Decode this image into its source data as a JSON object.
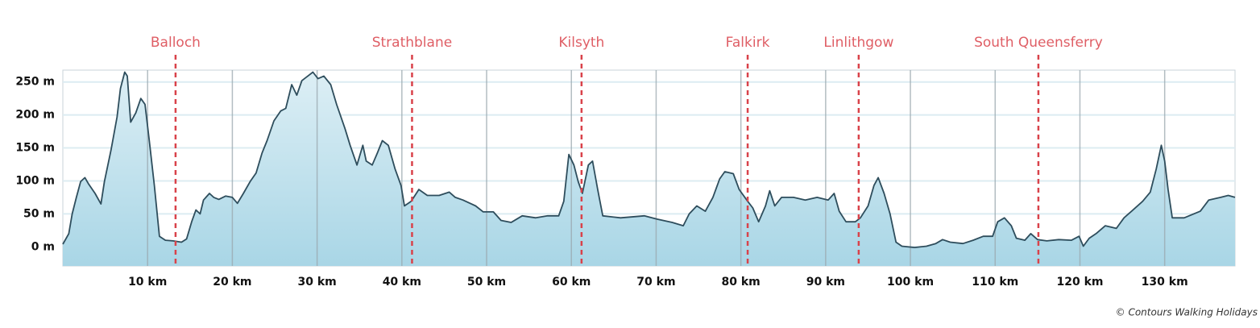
{
  "chart_data": {
    "type": "area",
    "x": [
      0,
      0.7,
      1.1,
      1.6,
      2.1,
      2.6,
      3.0,
      3.8,
      4.5,
      4.9,
      5.7,
      6.4,
      6.8,
      7.3,
      7.6,
      8.0,
      8.6,
      9.2,
      9.7,
      10.2,
      10.8,
      11.4,
      12.1,
      13.0,
      14.0,
      14.6,
      15.2,
      15.7,
      16.2,
      16.6,
      17.3,
      17.8,
      18.4,
      19.2,
      20.0,
      20.6,
      21.3,
      22.1,
      22.8,
      23.5,
      24.1,
      24.9,
      25.7,
      26.3,
      27.0,
      27.6,
      28.2,
      28.9,
      29.5,
      30.1,
      30.8,
      31.6,
      32.3,
      33.3,
      33.9,
      34.7,
      35.4,
      35.8,
      36.5,
      37.1,
      37.7,
      38.4,
      39.2,
      39.9,
      40.3,
      41.1,
      42.0,
      43.0,
      44.4,
      45.6,
      46.3,
      47.2,
      48.7,
      49.6,
      50.8,
      51.7,
      52.9,
      54.2,
      55.8,
      57.2,
      58.5,
      59.1,
      59.7,
      60.3,
      60.8,
      61.3,
      62.0,
      62.5,
      63.1,
      63.7,
      65.8,
      68.6,
      70.1,
      71.9,
      73.2,
      73.9,
      74.8,
      75.8,
      76.7,
      77.5,
      78.1,
      79.1,
      79.8,
      80.8,
      81.4,
      82.1,
      82.9,
      83.4,
      84.0,
      84.8,
      86.2,
      87.6,
      89.0,
      90.3,
      91.0,
      91.6,
      92.4,
      93.5,
      94.1,
      95.0,
      95.7,
      96.2,
      96.9,
      97.6,
      98.3,
      99.0,
      100.5,
      101.9,
      103.0,
      103.8,
      104.7,
      106.2,
      107.4,
      108.6,
      109.7,
      110.3,
      111.1,
      111.9,
      112.5,
      113.5,
      114.2,
      115.0,
      116.1,
      117.5,
      119.0,
      119.9,
      120.4,
      121.1,
      121.9,
      123.0,
      124.3,
      125.2,
      126.1,
      127.4,
      128.3,
      129.0,
      129.6,
      130.0,
      130.4,
      130.9,
      132.3,
      134.2,
      135.2,
      136.6,
      137.5,
      138.3
    ],
    "values": [
      4,
      20,
      50,
      75,
      99,
      105,
      96,
      81,
      65,
      99,
      148,
      197,
      240,
      265,
      259,
      189,
      203,
      225,
      216,
      161,
      93,
      16,
      10,
      9,
      7,
      12,
      38,
      56,
      50,
      71,
      81,
      75,
      72,
      77,
      75,
      66,
      81,
      99,
      112,
      142,
      161,
      191,
      206,
      210,
      246,
      230,
      252,
      259,
      265,
      255,
      259,
      246,
      216,
      179,
      154,
      124,
      154,
      130,
      124,
      142,
      161,
      154,
      118,
      93,
      62,
      69,
      87,
      78,
      78,
      83,
      75,
      71,
      62,
      53,
      53,
      40,
      37,
      47,
      44,
      47,
      47,
      69,
      140,
      124,
      99,
      81,
      124,
      130,
      87,
      47,
      44,
      47,
      42,
      37,
      32,
      50,
      62,
      54,
      75,
      103,
      114,
      111,
      87,
      69,
      59,
      38,
      62,
      85,
      62,
      75,
      75,
      71,
      75,
      71,
      81,
      54,
      38,
      38,
      44,
      62,
      93,
      105,
      81,
      50,
      7,
      1,
      -1,
      1,
      5,
      11,
      7,
      5,
      10,
      16,
      16,
      38,
      44,
      32,
      13,
      10,
      20,
      11,
      9,
      11,
      10,
      16,
      1,
      13,
      20,
      32,
      28,
      44,
      54,
      69,
      83,
      118,
      154,
      130,
      87,
      44,
      44,
      54,
      71,
      75,
      78,
      75
    ],
    "xlim": [
      0,
      138.3
    ],
    "ylim": [
      -29,
      268
    ],
    "xticks": [
      {
        "value": 10,
        "label": "10 km"
      },
      {
        "value": 20,
        "label": "20 km"
      },
      {
        "value": 30,
        "label": "30 km"
      },
      {
        "value": 40,
        "label": "40 km"
      },
      {
        "value": 50,
        "label": "50 km"
      },
      {
        "value": 60,
        "label": "60 km"
      },
      {
        "value": 70,
        "label": "70 km"
      },
      {
        "value": 80,
        "label": "80 km"
      },
      {
        "value": 90,
        "label": "90 km"
      },
      {
        "value": 100,
        "label": "100 km"
      },
      {
        "value": 110,
        "label": "110 km"
      },
      {
        "value": 120,
        "label": "120 km"
      },
      {
        "value": 130,
        "label": "130 km"
      }
    ],
    "yticks": [
      {
        "value": 0,
        "label": "0 m"
      },
      {
        "value": 50,
        "label": "50 m"
      },
      {
        "value": 100,
        "label": "100 m"
      },
      {
        "value": 150,
        "label": "150 m"
      },
      {
        "value": 200,
        "label": "200 m"
      },
      {
        "value": 250,
        "label": "250 m"
      }
    ],
    "markers": [
      {
        "label": "Balloch",
        "x": 13.3
      },
      {
        "label": "Strathblane",
        "x": 41.2
      },
      {
        "label": "Kilsyth",
        "x": 61.2
      },
      {
        "label": "Falkirk",
        "x": 80.8
      },
      {
        "label": "Linlithgow",
        "x": 93.9
      },
      {
        "label": "South Queensferry",
        "x": 115.1
      }
    ],
    "annotation": "© Contours Walking Holidays",
    "grid": true,
    "line_color": "#2e4d5c",
    "fill_color": "#a9d6e6",
    "marker_color": "#d9424a"
  }
}
